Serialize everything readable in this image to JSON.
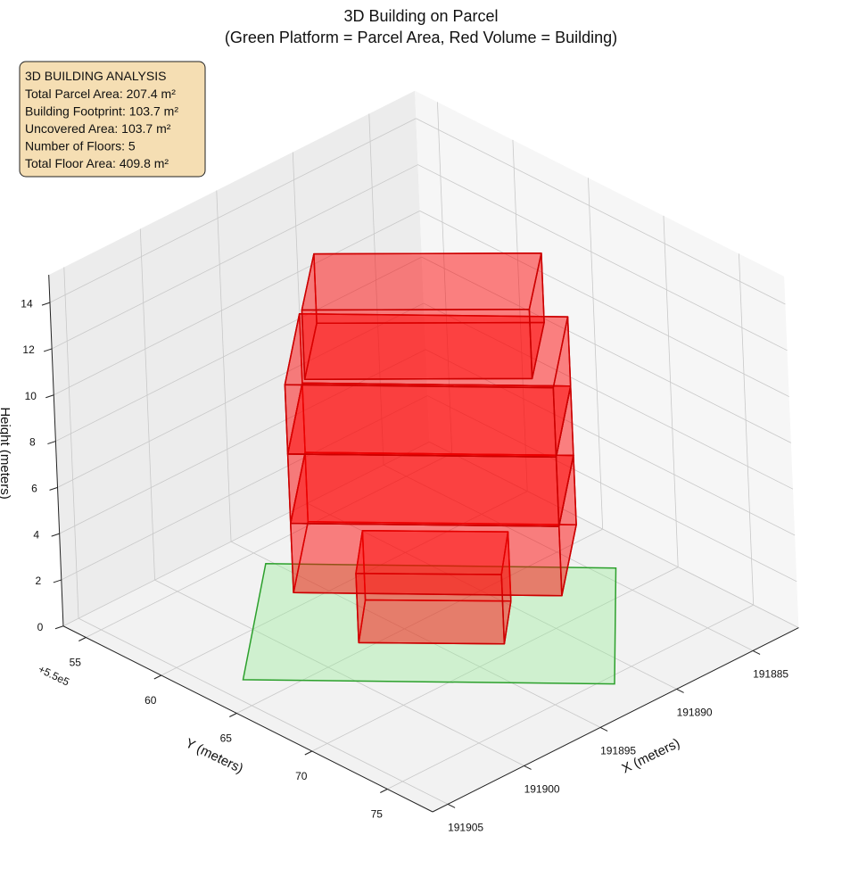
{
  "chart_data": {
    "type": "box3d",
    "title": "3D Building on Parcel",
    "subtitle": "(Green Platform = Parcel Area, Red Volume = Building)",
    "x_label": "X (meters)",
    "y_label": "Y (meters)",
    "z_label": "Height (meters)",
    "y_offset_label": "+5.5e5",
    "xlim": [
      191882,
      191906
    ],
    "ylim": [
      53.5,
      78
    ],
    "zlim": [
      0,
      15.2
    ],
    "xticks": [
      191885,
      191890,
      191895,
      191900,
      191905
    ],
    "yticks": [
      55,
      60,
      65,
      70,
      75
    ],
    "zticks": [
      0,
      2,
      4,
      6,
      8,
      10,
      12,
      14
    ],
    "grid": true,
    "annotation": {
      "title": "3D BUILDING ANALYSIS",
      "lines": [
        "Total Parcel Area: 207.4 m²",
        "Building Footprint: 103.7 m²",
        "Uncovered Area: 103.7 m²",
        "Number of Floors: 5",
        "Total Floor Area: 409.8 m²"
      ]
    },
    "parcel": {
      "color": "#90ee90",
      "edge_color": "#2ca02c",
      "x": [
        191895.3,
        191884.1,
        191891.7,
        191903.6
      ],
      "y": [
        56.1,
        68.0,
        75.6,
        63.0
      ]
    },
    "building": {
      "color": "#ff0000",
      "edge_color": "#cc0000",
      "floors": [
        {
          "x": [
            191897.4,
            191892.7,
            191889.7,
            191894.4
          ],
          "y": [
            64.4,
            69.3,
            66.7,
            61.8
          ],
          "z": [
            0,
            3
          ]
        },
        {
          "x": [
            191900.7,
            191892.1,
            191887.0,
            191895.6
          ],
          "y": [
            63.6,
            72.7,
            68.5,
            59.4
          ],
          "z": [
            3,
            6
          ]
        },
        {
          "x": [
            191900.7,
            191892.1,
            191887.0,
            191895.6
          ],
          "y": [
            63.6,
            72.7,
            68.5,
            59.4
          ],
          "z": [
            6,
            9
          ]
        },
        {
          "x": [
            191900.7,
            191892.1,
            191887.0,
            191895.6
          ],
          "y": [
            63.6,
            72.7,
            68.5,
            59.4
          ],
          "z": [
            9,
            12
          ]
        },
        {
          "x": [
            191899.7,
            191892.2,
            191888.15,
            191895.65
          ],
          "y": [
            63.9,
            71.4,
            68.1,
            60.6
          ],
          "z": [
            12,
            15
          ]
        }
      ]
    }
  }
}
